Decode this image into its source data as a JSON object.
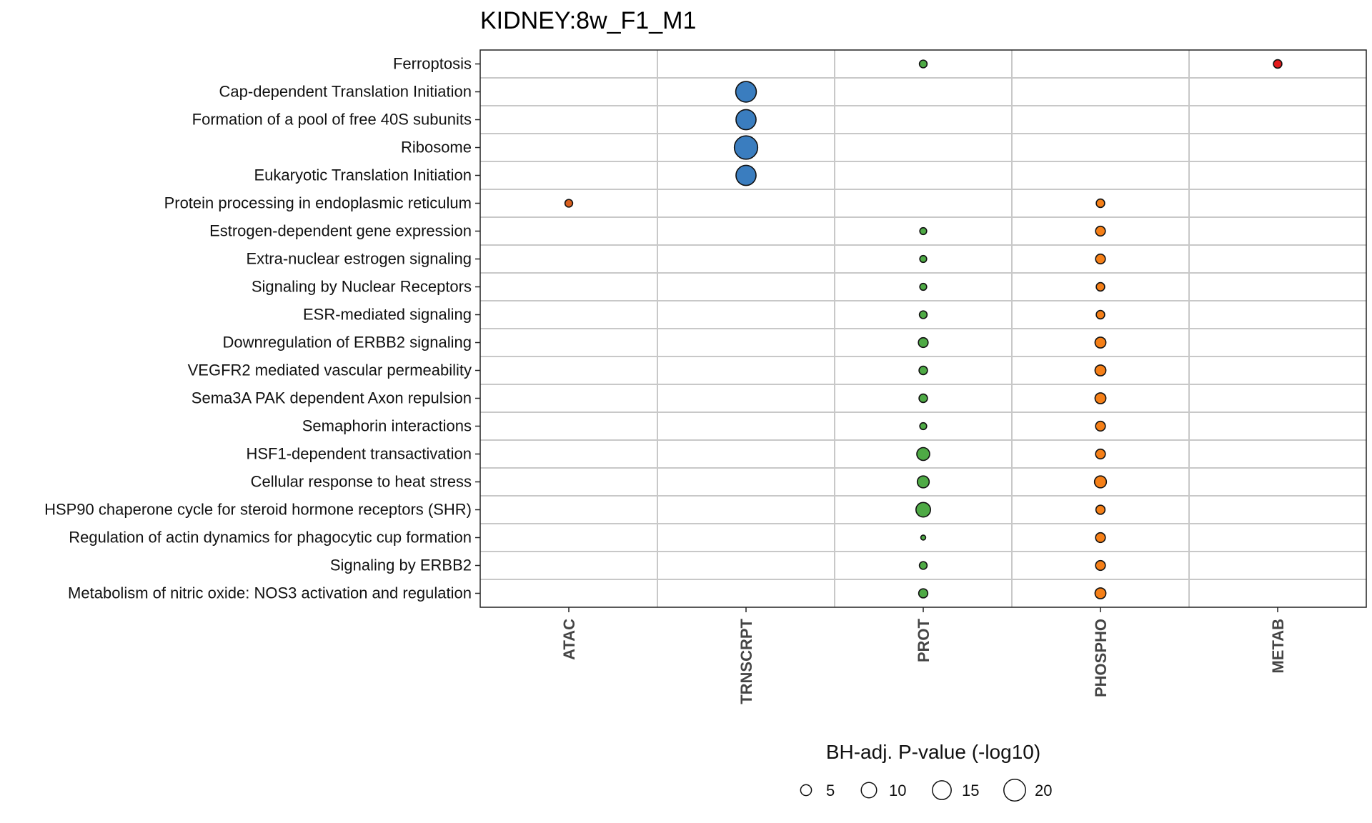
{
  "chart_data": {
    "type": "scatter",
    "title": "KIDNEY:8w_F1_M1",
    "xlabel": "",
    "ylabel": "",
    "x_categories": [
      "ATAC",
      "TRNSCRPT",
      "PROT",
      "PHOSPHO",
      "METAB"
    ],
    "y_categories": [
      "Ferroptosis",
      "Cap-dependent Translation Initiation",
      "Formation of a pool of free 40S subunits",
      "Ribosome",
      "Eukaryotic Translation Initiation",
      "Protein processing in endoplasmic reticulum",
      "Estrogen-dependent gene expression",
      "Extra-nuclear estrogen signaling",
      "Signaling by Nuclear Receptors",
      "ESR-mediated signaling",
      "Downregulation of ERBB2 signaling",
      "VEGFR2 mediated vascular permeability",
      "Sema3A PAK dependent Axon repulsion",
      "Semaphorin interactions",
      "HSF1-dependent transactivation",
      "Cellular response to heat stress",
      "HSP90 chaperone cycle for steroid hormone receptors (SHR)",
      "Regulation of actin dynamics for phagocytic cup formation",
      "Signaling by ERBB2",
      "Metabolism of nitric oxide: NOS3 activation and regulation"
    ],
    "colors": {
      "ATAC": "#d95f1e",
      "TRNSCRPT": "#3a7dbf",
      "PROT": "#4eaa45",
      "PHOSPHO": "#f57f17",
      "METAB": "#e31a1c"
    },
    "points": [
      {
        "y": "Ferroptosis",
        "x": "PROT",
        "size": 2.5
      },
      {
        "y": "Ferroptosis",
        "x": "METAB",
        "size": 3
      },
      {
        "y": "Cap-dependent Translation Initiation",
        "x": "TRNSCRPT",
        "size": 18
      },
      {
        "y": "Formation of a pool of free 40S subunits",
        "x": "TRNSCRPT",
        "size": 17
      },
      {
        "y": "Ribosome",
        "x": "TRNSCRPT",
        "size": 23
      },
      {
        "y": "Eukaryotic Translation Initiation",
        "x": "TRNSCRPT",
        "size": 17
      },
      {
        "y": "Protein processing in endoplasmic reticulum",
        "x": "ATAC",
        "size": 2.5
      },
      {
        "y": "Protein processing in endoplasmic reticulum",
        "x": "PHOSPHO",
        "size": 3
      },
      {
        "y": "Estrogen-dependent gene expression",
        "x": "PROT",
        "size": 2
      },
      {
        "y": "Estrogen-dependent gene expression",
        "x": "PHOSPHO",
        "size": 4
      },
      {
        "y": "Extra-nuclear estrogen signaling",
        "x": "PROT",
        "size": 2
      },
      {
        "y": "Extra-nuclear estrogen signaling",
        "x": "PHOSPHO",
        "size": 4
      },
      {
        "y": "Signaling by Nuclear Receptors",
        "x": "PROT",
        "size": 2
      },
      {
        "y": "Signaling by Nuclear Receptors",
        "x": "PHOSPHO",
        "size": 3
      },
      {
        "y": "ESR-mediated signaling",
        "x": "PROT",
        "size": 2.5
      },
      {
        "y": "ESR-mediated signaling",
        "x": "PHOSPHO",
        "size": 3
      },
      {
        "y": "Downregulation of ERBB2 signaling",
        "x": "PROT",
        "size": 4
      },
      {
        "y": "Downregulation of ERBB2 signaling",
        "x": "PHOSPHO",
        "size": 5
      },
      {
        "y": "VEGFR2 mediated vascular permeability",
        "x": "PROT",
        "size": 3
      },
      {
        "y": "VEGFR2 mediated vascular permeability",
        "x": "PHOSPHO",
        "size": 5
      },
      {
        "y": "Sema3A PAK dependent Axon repulsion",
        "x": "PROT",
        "size": 3
      },
      {
        "y": "Sema3A PAK dependent Axon repulsion",
        "x": "PHOSPHO",
        "size": 5
      },
      {
        "y": "Semaphorin interactions",
        "x": "PROT",
        "size": 2
      },
      {
        "y": "Semaphorin interactions",
        "x": "PHOSPHO",
        "size": 4
      },
      {
        "y": "HSF1-dependent transactivation",
        "x": "PROT",
        "size": 7
      },
      {
        "y": "HSF1-dependent transactivation",
        "x": "PHOSPHO",
        "size": 4
      },
      {
        "y": "Cellular response to heat stress",
        "x": "PROT",
        "size": 6
      },
      {
        "y": "Cellular response to heat stress",
        "x": "PHOSPHO",
        "size": 6
      },
      {
        "y": "HSP90 chaperone cycle for steroid hormone receptors (SHR)",
        "x": "PROT",
        "size": 9
      },
      {
        "y": "HSP90 chaperone cycle for steroid hormone receptors (SHR)",
        "x": "PHOSPHO",
        "size": 3.5
      },
      {
        "y": "Regulation of actin dynamics for phagocytic cup formation",
        "x": "PROT",
        "size": 1
      },
      {
        "y": "Regulation of actin dynamics for phagocytic cup formation",
        "x": "PHOSPHO",
        "size": 4
      },
      {
        "y": "Signaling by ERBB2",
        "x": "PROT",
        "size": 2.5
      },
      {
        "y": "Signaling by ERBB2",
        "x": "PHOSPHO",
        "size": 4
      },
      {
        "y": "Metabolism of nitric oxide: NOS3 activation and regulation",
        "x": "PROT",
        "size": 3.5
      },
      {
        "y": "Metabolism of nitric oxide: NOS3 activation and regulation",
        "x": "PHOSPHO",
        "size": 5
      }
    ],
    "size_legend": {
      "title": "BH-adj. P-value (-log10)",
      "values": [
        5,
        10,
        15,
        20
      ]
    },
    "grid": true,
    "legend_position": "bottom"
  }
}
